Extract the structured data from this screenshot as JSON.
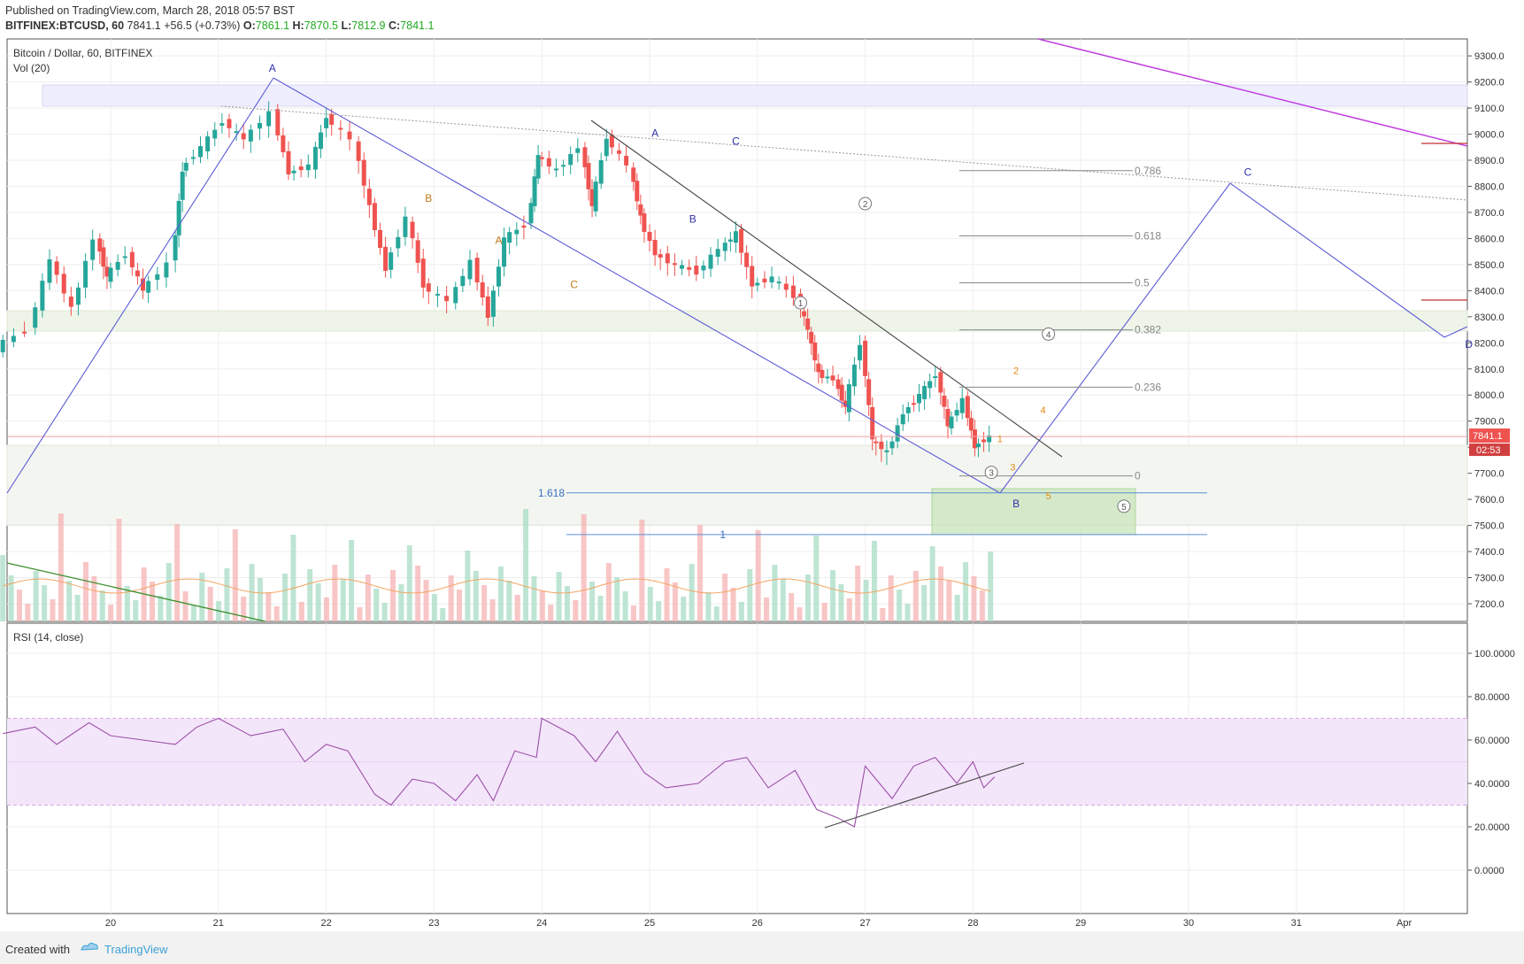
{
  "header": {
    "published": "Published on TradingView.com, March 28, 2018 05:57 BST",
    "symbol": "BITFINEX:BTCUSD, 60",
    "last": "7841.1",
    "change": "+56.5 (+0.73%)",
    "o_label": "O:",
    "o": "7861.1",
    "h_label": "H:",
    "h": "7870.5",
    "l_label": "L:",
    "l": "7812.9",
    "c_label": "C:",
    "c": "7841.1"
  },
  "footer": {
    "created_with": "Created with",
    "brand": "TradingView"
  },
  "colors": {
    "up": "#26a69a",
    "down": "#ef5350",
    "wave": "#5b5bd6",
    "rsi": "#9c4fa8",
    "purple_trend": "#c040e0",
    "last_price_bg": "#ef5350"
  },
  "chart_data": [
    {
      "type": "candlestick",
      "title": "Bitcoin / Dollar, 60, BITFINEX",
      "indicator_label": "Vol (20)",
      "y_ticks": [
        "9300.0",
        "9200.0",
        "9100.0",
        "9000.0",
        "8900.0",
        "8800.0",
        "8700.0",
        "8600.0",
        "8500.0",
        "8400.0",
        "8300.0",
        "8200.0",
        "8100.0",
        "8000.0",
        "7900.0",
        "7800.0",
        "7700.0",
        "7600.0",
        "7500.0",
        "7400.0",
        "7300.0",
        "7200.0"
      ],
      "ylim": [
        7160,
        9380
      ],
      "x_ticks": [
        "20",
        "21",
        "22",
        "23",
        "24",
        "25",
        "26",
        "27",
        "28",
        "29",
        "30",
        "31",
        "Apr"
      ],
      "last_price": "7841.1",
      "countdown": "02:53",
      "price_path": [
        {
          "x": 19.0,
          "y": 8180
        },
        {
          "x": 19.3,
          "y": 8250
        },
        {
          "x": 19.5,
          "y": 8520
        },
        {
          "x": 19.7,
          "y": 8330
        },
        {
          "x": 19.9,
          "y": 8600
        },
        {
          "x": 20.0,
          "y": 8450
        },
        {
          "x": 20.2,
          "y": 8540
        },
        {
          "x": 20.35,
          "y": 8400
        },
        {
          "x": 20.6,
          "y": 8500
        },
        {
          "x": 20.7,
          "y": 8860
        },
        {
          "x": 20.9,
          "y": 8950
        },
        {
          "x": 21.1,
          "y": 9050
        },
        {
          "x": 21.3,
          "y": 8980
        },
        {
          "x": 21.55,
          "y": 9080
        },
        {
          "x": 21.7,
          "y": 8850
        },
        {
          "x": 21.9,
          "y": 8880
        },
        {
          "x": 22.05,
          "y": 9070
        },
        {
          "x": 22.3,
          "y": 8980
        },
        {
          "x": 22.45,
          "y": 8720
        },
        {
          "x": 22.6,
          "y": 8480
        },
        {
          "x": 22.8,
          "y": 8680
        },
        {
          "x": 22.95,
          "y": 8420
        },
        {
          "x": 23.2,
          "y": 8360
        },
        {
          "x": 23.4,
          "y": 8510
        },
        {
          "x": 23.55,
          "y": 8300
        },
        {
          "x": 23.7,
          "y": 8600
        },
        {
          "x": 23.9,
          "y": 8650
        },
        {
          "x": 24.0,
          "y": 8920
        },
        {
          "x": 24.2,
          "y": 8860
        },
        {
          "x": 24.4,
          "y": 8950
        },
        {
          "x": 24.5,
          "y": 8720
        },
        {
          "x": 24.65,
          "y": 8990
        },
        {
          "x": 24.85,
          "y": 8880
        },
        {
          "x": 24.95,
          "y": 8680
        },
        {
          "x": 25.1,
          "y": 8540
        },
        {
          "x": 25.3,
          "y": 8500
        },
        {
          "x": 25.5,
          "y": 8470
        },
        {
          "x": 25.7,
          "y": 8560
        },
        {
          "x": 25.85,
          "y": 8620
        },
        {
          "x": 26.0,
          "y": 8420
        },
        {
          "x": 26.2,
          "y": 8450
        },
        {
          "x": 26.4,
          "y": 8380
        },
        {
          "x": 26.5,
          "y": 8250
        },
        {
          "x": 26.6,
          "y": 8080
        },
        {
          "x": 26.75,
          "y": 8060
        },
        {
          "x": 26.85,
          "y": 7950
        },
        {
          "x": 27.0,
          "y": 8200
        },
        {
          "x": 27.1,
          "y": 7830
        },
        {
          "x": 27.25,
          "y": 7780
        },
        {
          "x": 27.4,
          "y": 7930
        },
        {
          "x": 27.55,
          "y": 8000
        },
        {
          "x": 27.7,
          "y": 8080
        },
        {
          "x": 27.8,
          "y": 7880
        },
        {
          "x": 27.95,
          "y": 7980
        },
        {
          "x": 28.05,
          "y": 7800
        },
        {
          "x": 28.2,
          "y": 7841
        }
      ],
      "wave_labels": [
        {
          "text": "A",
          "x": 21.5,
          "y": 9240
        },
        {
          "text": "B",
          "x": 22.95,
          "y": 8740
        },
        {
          "text": "A",
          "x": 23.6,
          "y": 8580
        },
        {
          "text": "C",
          "x": 24.3,
          "y": 8410
        },
        {
          "text": "A",
          "x": 25.05,
          "y": 8990
        },
        {
          "text": "B",
          "x": 25.4,
          "y": 8660
        },
        {
          "text": "C",
          "x": 25.8,
          "y": 8960
        },
        {
          "text": "B",
          "x": 28.4,
          "y": 7570
        },
        {
          "text": "C",
          "x": 30.55,
          "y": 8840
        },
        {
          "text": "D",
          "x": 32.6,
          "y": 8180
        }
      ],
      "circled_waves": [
        {
          "text": "1",
          "x": 26.4,
          "y": 8340
        },
        {
          "text": "2",
          "x": 27.0,
          "y": 8720
        },
        {
          "text": "3",
          "x": 28.17,
          "y": 7690
        },
        {
          "text": "4",
          "x": 28.7,
          "y": 8220
        },
        {
          "text": "5",
          "x": 29.4,
          "y": 7560
        }
      ],
      "sub_waves": [
        {
          "text": "1",
          "x": 28.25,
          "y": 7820
        },
        {
          "text": "2",
          "x": 28.4,
          "y": 8080
        },
        {
          "text": "3",
          "x": 28.37,
          "y": 7710
        },
        {
          "text": "4",
          "x": 28.65,
          "y": 7930
        },
        {
          "text": "5",
          "x": 28.7,
          "y": 7600
        }
      ],
      "fib_levels": [
        {
          "label": "0.786",
          "price": 8860
        },
        {
          "label": "0.618",
          "price": 8610
        },
        {
          "label": "0.5",
          "price": 8430
        },
        {
          "label": "0.382",
          "price": 8250
        },
        {
          "label": "0.236",
          "price": 8030
        },
        {
          "label": "0",
          "price": 7690
        }
      ],
      "ext_levels": [
        {
          "label": "1.618",
          "price": 7625
        },
        {
          "label": "1",
          "price": 7465
        }
      ]
    },
    {
      "type": "line",
      "title": "RSI (14, close)",
      "y_ticks": [
        "100.0000",
        "80.0000",
        "60.0000",
        "40.0000",
        "20.0000",
        "0.0000"
      ],
      "ylim": [
        -20,
        108
      ],
      "band": [
        30,
        70
      ],
      "values": [
        {
          "x": 19.0,
          "y": 63
        },
        {
          "x": 19.3,
          "y": 66
        },
        {
          "x": 19.5,
          "y": 58
        },
        {
          "x": 19.8,
          "y": 68
        },
        {
          "x": 20.0,
          "y": 62
        },
        {
          "x": 20.3,
          "y": 60
        },
        {
          "x": 20.6,
          "y": 58
        },
        {
          "x": 20.8,
          "y": 66
        },
        {
          "x": 21.0,
          "y": 70
        },
        {
          "x": 21.3,
          "y": 62
        },
        {
          "x": 21.6,
          "y": 65
        },
        {
          "x": 21.8,
          "y": 50
        },
        {
          "x": 22.0,
          "y": 58
        },
        {
          "x": 22.2,
          "y": 55
        },
        {
          "x": 22.45,
          "y": 35
        },
        {
          "x": 22.6,
          "y": 30
        },
        {
          "x": 22.8,
          "y": 42
        },
        {
          "x": 23.0,
          "y": 40
        },
        {
          "x": 23.2,
          "y": 32
        },
        {
          "x": 23.4,
          "y": 44
        },
        {
          "x": 23.55,
          "y": 32
        },
        {
          "x": 23.75,
          "y": 55
        },
        {
          "x": 23.95,
          "y": 52
        },
        {
          "x": 24.0,
          "y": 70
        },
        {
          "x": 24.3,
          "y": 62
        },
        {
          "x": 24.5,
          "y": 50
        },
        {
          "x": 24.7,
          "y": 64
        },
        {
          "x": 24.95,
          "y": 45
        },
        {
          "x": 25.15,
          "y": 38
        },
        {
          "x": 25.45,
          "y": 40
        },
        {
          "x": 25.7,
          "y": 50
        },
        {
          "x": 25.9,
          "y": 52
        },
        {
          "x": 26.1,
          "y": 38
        },
        {
          "x": 26.35,
          "y": 46
        },
        {
          "x": 26.55,
          "y": 28
        },
        {
          "x": 26.75,
          "y": 24
        },
        {
          "x": 26.9,
          "y": 20
        },
        {
          "x": 27.0,
          "y": 48
        },
        {
          "x": 27.1,
          "y": 42
        },
        {
          "x": 27.25,
          "y": 33
        },
        {
          "x": 27.45,
          "y": 48
        },
        {
          "x": 27.65,
          "y": 52
        },
        {
          "x": 27.85,
          "y": 40
        },
        {
          "x": 28.0,
          "y": 50
        },
        {
          "x": 28.1,
          "y": 38
        },
        {
          "x": 28.2,
          "y": 43
        }
      ]
    }
  ]
}
